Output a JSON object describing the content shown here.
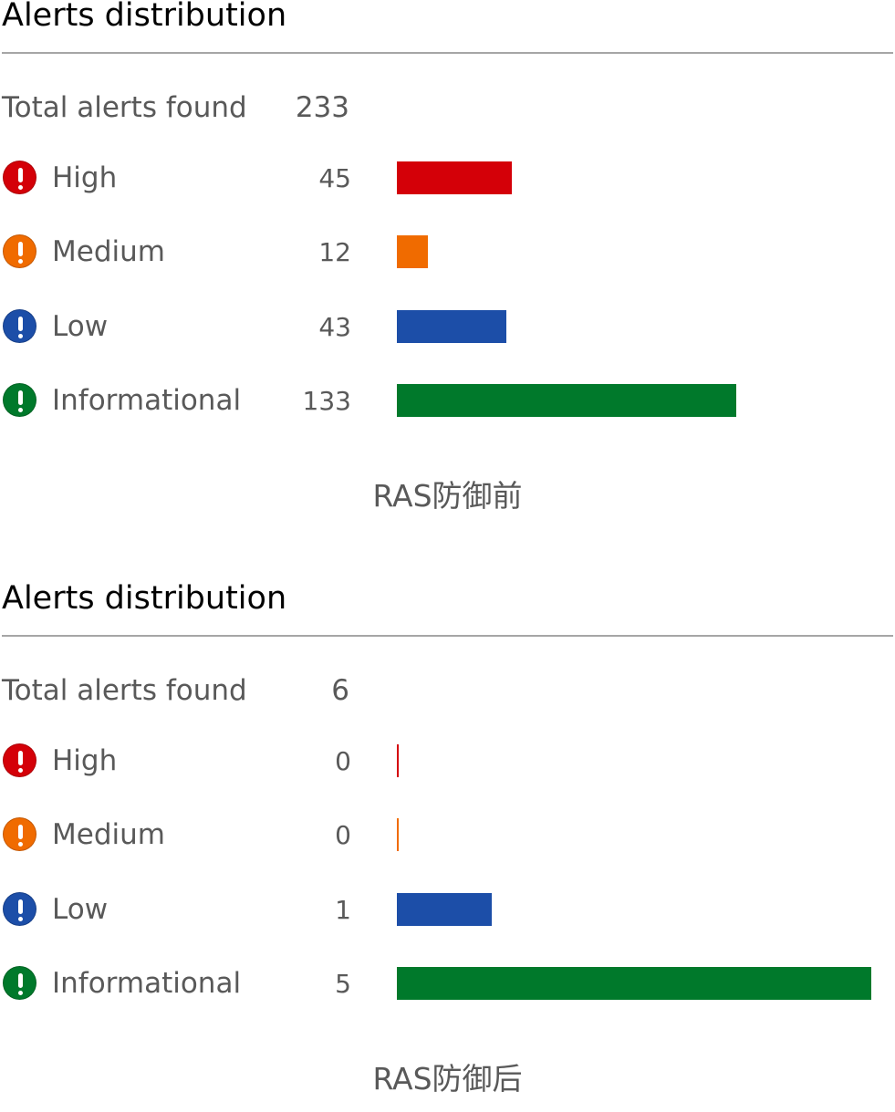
{
  "colors": {
    "high": "#d40008",
    "medium": "#f06b00",
    "low": "#1c4ea8",
    "informational": "#00792b",
    "heading": "#000000",
    "text": "#595959",
    "rule": "#a6a6a6"
  },
  "chart_data": [
    {
      "type": "bar",
      "orientation": "horizontal",
      "title": "Alerts distribution",
      "total_label": "Total alerts found",
      "total": 233,
      "categories": [
        "High",
        "Medium",
        "Low",
        "Informational"
      ],
      "values": [
        45,
        12,
        43,
        133
      ],
      "icons": [
        "exclamation-circle-icon",
        "exclamation-circle-icon",
        "exclamation-circle-icon",
        "exclamation-circle-icon"
      ],
      "caption": "RAS防御前",
      "grid": false,
      "legend": "none"
    },
    {
      "type": "bar",
      "orientation": "horizontal",
      "title": "Alerts distribution",
      "total_label": "Total alerts found",
      "total": 6,
      "categories": [
        "High",
        "Medium",
        "Low",
        "Informational"
      ],
      "values": [
        0,
        0,
        1,
        5
      ],
      "icons": [
        "exclamation-circle-icon",
        "exclamation-circle-icon",
        "exclamation-circle-icon",
        "exclamation-circle-icon"
      ],
      "caption": "RAS防御后",
      "grid": false,
      "legend": "none"
    }
  ]
}
